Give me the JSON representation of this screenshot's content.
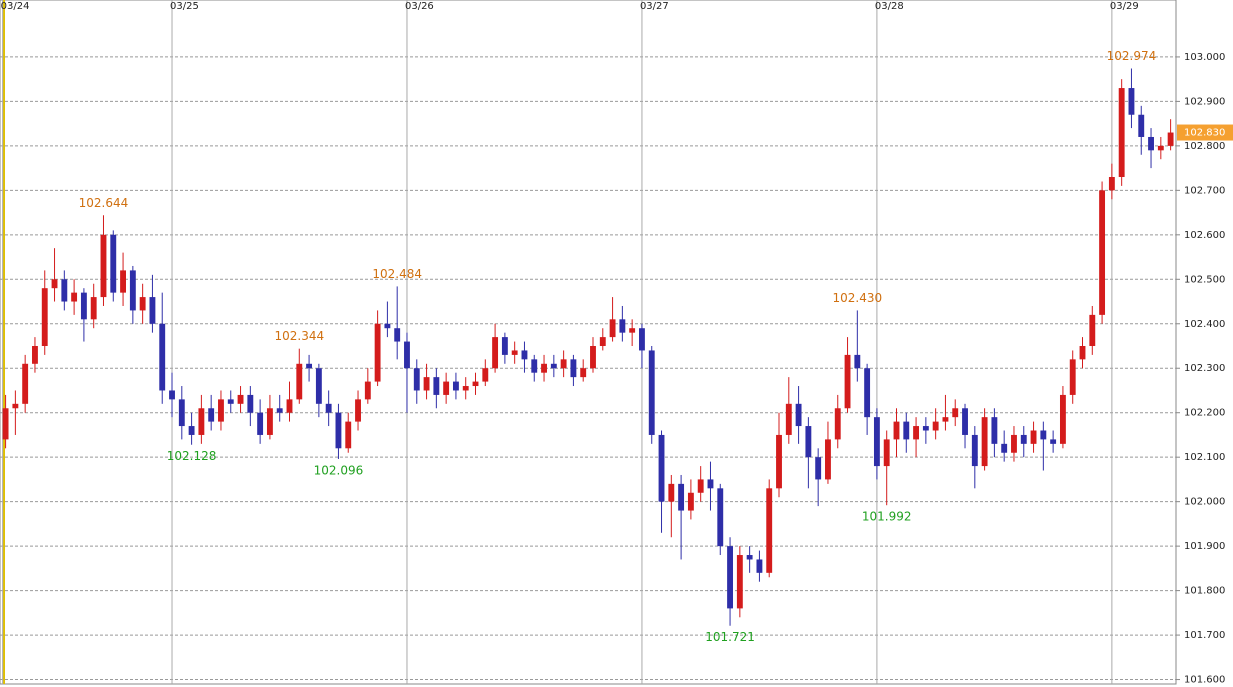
{
  "chart_data": {
    "type": "candlestick",
    "colors": {
      "up": "#d41c1c",
      "down": "#2e2ea8"
    },
    "open": [
      102.14,
      102.21,
      102.22,
      102.31,
      102.35,
      102.48,
      102.5,
      102.45,
      102.47,
      102.41,
      102.46,
      102.6,
      102.47,
      102.52,
      102.43,
      102.46,
      102.4,
      102.25,
      102.23,
      102.17,
      102.15,
      102.21,
      102.18,
      102.23,
      102.22,
      102.24,
      102.2,
      102.15,
      102.21,
      102.2,
      102.23,
      102.31,
      102.3,
      102.22,
      102.2,
      102.12,
      102.18,
      102.23,
      102.27,
      102.4,
      102.39,
      102.36,
      102.3,
      102.25,
      102.28,
      102.24,
      102.27,
      102.25,
      102.26,
      102.27,
      102.3,
      102.37,
      102.33,
      102.34,
      102.32,
      102.29,
      102.31,
      102.3,
      102.32,
      102.28,
      102.3,
      102.35,
      102.37,
      102.41,
      102.38,
      102.39,
      102.34,
      102.15,
      102.0,
      102.04,
      101.98,
      102.02,
      102.05,
      102.03,
      101.9,
      101.76,
      101.88,
      101.87,
      101.84,
      102.03,
      102.15,
      102.22,
      102.17,
      102.1,
      102.05,
      102.14,
      102.21,
      102.33,
      102.3,
      102.19,
      102.08,
      102.14,
      102.18,
      102.14,
      102.17,
      102.16,
      102.18,
      102.19,
      102.21,
      102.15,
      102.08,
      102.19,
      102.13,
      102.11,
      102.15,
      102.13,
      102.16,
      102.14,
      102.13,
      102.24,
      102.32,
      102.35,
      102.42,
      102.7,
      102.73,
      102.93,
      102.87,
      102.82,
      102.79,
      102.8
    ],
    "high": [
      102.24,
      102.25,
      102.33,
      102.37,
      102.52,
      102.57,
      102.52,
      102.5,
      102.48,
      102.49,
      102.644,
      102.61,
      102.56,
      102.53,
      102.49,
      102.51,
      102.47,
      102.29,
      102.26,
      102.2,
      102.24,
      102.24,
      102.25,
      102.25,
      102.26,
      102.26,
      102.23,
      102.24,
      102.24,
      102.27,
      102.344,
      102.33,
      102.31,
      102.25,
      102.22,
      102.2,
      102.25,
      102.3,
      102.43,
      102.45,
      102.484,
      102.38,
      102.32,
      102.31,
      102.3,
      102.29,
      102.29,
      102.28,
      102.29,
      102.32,
      102.4,
      102.38,
      102.36,
      102.36,
      102.33,
      102.33,
      102.33,
      102.34,
      102.33,
      102.32,
      102.37,
      102.39,
      102.46,
      102.44,
      102.41,
      102.4,
      102.35,
      102.16,
      102.06,
      102.06,
      102.05,
      102.08,
      102.09,
      102.04,
      101.92,
      101.9,
      101.9,
      101.89,
      102.05,
      102.2,
      102.28,
      102.26,
      102.19,
      102.12,
      102.18,
      102.24,
      102.37,
      102.43,
      102.31,
      102.21,
      102.16,
      102.21,
      102.2,
      102.19,
      102.19,
      102.21,
      102.24,
      102.23,
      102.22,
      102.17,
      102.21,
      102.21,
      102.16,
      102.17,
      102.17,
      102.18,
      102.18,
      102.16,
      102.26,
      102.34,
      102.37,
      102.44,
      102.72,
      102.76,
      102.95,
      102.974,
      102.89,
      102.84,
      102.82,
      102.86
    ],
    "low": [
      102.12,
      102.15,
      102.2,
      102.29,
      102.33,
      102.45,
      102.43,
      102.42,
      102.36,
      102.39,
      102.44,
      102.45,
      102.44,
      102.4,
      102.4,
      102.38,
      102.22,
      102.19,
      102.14,
      102.128,
      102.13,
      102.16,
      102.16,
      102.2,
      102.2,
      102.17,
      102.13,
      102.14,
      102.18,
      102.18,
      102.22,
      102.27,
      102.19,
      102.17,
      102.096,
      102.11,
      102.16,
      102.22,
      102.26,
      102.37,
      102.32,
      102.2,
      102.22,
      102.23,
      102.21,
      102.22,
      102.23,
      102.23,
      102.24,
      102.26,
      102.29,
      102.31,
      102.31,
      102.29,
      102.27,
      102.27,
      102.28,
      102.28,
      102.26,
      102.27,
      102.29,
      102.34,
      102.36,
      102.36,
      102.35,
      102.3,
      102.13,
      101.93,
      101.92,
      101.87,
      101.96,
      102.0,
      101.98,
      101.88,
      101.721,
      101.74,
      101.84,
      101.82,
      101.83,
      102.01,
      102.13,
      102.13,
      102.03,
      101.99,
      102.04,
      102.12,
      102.2,
      102.27,
      102.15,
      102.05,
      101.992,
      102.1,
      102.11,
      102.1,
      102.13,
      102.14,
      102.16,
      102.17,
      102.12,
      102.03,
      102.07,
      102.1,
      102.09,
      102.09,
      102.1,
      102.11,
      102.07,
      102.11,
      102.12,
      102.22,
      102.3,
      102.33,
      102.4,
      102.68,
      102.71,
      102.84,
      102.78,
      102.75,
      102.77,
      102.79
    ],
    "close": [
      102.21,
      102.22,
      102.31,
      102.35,
      102.48,
      102.5,
      102.45,
      102.47,
      102.41,
      102.46,
      102.6,
      102.47,
      102.52,
      102.43,
      102.46,
      102.4,
      102.25,
      102.23,
      102.17,
      102.15,
      102.21,
      102.18,
      102.23,
      102.22,
      102.24,
      102.2,
      102.15,
      102.21,
      102.2,
      102.23,
      102.31,
      102.3,
      102.22,
      102.2,
      102.12,
      102.18,
      102.23,
      102.27,
      102.4,
      102.39,
      102.36,
      102.3,
      102.25,
      102.28,
      102.24,
      102.27,
      102.25,
      102.26,
      102.27,
      102.3,
      102.37,
      102.33,
      102.34,
      102.32,
      102.29,
      102.31,
      102.3,
      102.32,
      102.28,
      102.3,
      102.35,
      102.37,
      102.41,
      102.38,
      102.39,
      102.34,
      102.15,
      102.0,
      102.04,
      101.98,
      102.02,
      102.05,
      102.03,
      101.9,
      101.76,
      101.88,
      101.87,
      101.84,
      102.03,
      102.15,
      102.22,
      102.17,
      102.1,
      102.05,
      102.14,
      102.21,
      102.33,
      102.3,
      102.19,
      102.08,
      102.14,
      102.18,
      102.14,
      102.17,
      102.16,
      102.18,
      102.19,
      102.21,
      102.15,
      102.08,
      102.19,
      102.13,
      102.11,
      102.15,
      102.13,
      102.16,
      102.14,
      102.13,
      102.24,
      102.32,
      102.35,
      102.42,
      102.7,
      102.73,
      102.93,
      102.87,
      102.82,
      102.79,
      102.8,
      102.83
    ],
    "xlim": [
      -0.57,
      119.55
    ],
    "xticks": [
      {
        "value": -0.3,
        "label": "03/24"
      },
      {
        "value": 17,
        "label": "03/25"
      },
      {
        "value": 41,
        "label": "03/26"
      },
      {
        "value": 65,
        "label": "03/27"
      },
      {
        "value": 89,
        "label": "03/28"
      },
      {
        "value": 113,
        "label": "03/29"
      }
    ],
    "ylim": [
      101.59,
      103.128
    ],
    "yticks": [
      {
        "value": 101.6,
        "label": "101.600"
      },
      {
        "value": 101.7,
        "label": "101.700"
      },
      {
        "value": 101.8,
        "label": "101.800"
      },
      {
        "value": 101.9,
        "label": "101.900"
      },
      {
        "value": 102.0,
        "label": "102.000"
      },
      {
        "value": 102.1,
        "label": "102.100"
      },
      {
        "value": 102.2,
        "label": "102.200"
      },
      {
        "value": 102.3,
        "label": "102.300"
      },
      {
        "value": 102.4,
        "label": "102.400"
      },
      {
        "value": 102.5,
        "label": "102.500"
      },
      {
        "value": 102.6,
        "label": "102.600"
      },
      {
        "value": 102.7,
        "label": "102.700"
      },
      {
        "value": 102.8,
        "label": "102.800"
      },
      {
        "value": 102.9,
        "label": "102.900"
      },
      {
        "value": 103.0,
        "label": "103.000"
      }
    ],
    "grid": true,
    "annotations": [
      {
        "text": "102.644",
        "x": 10,
        "position": "above",
        "color": "#d07010"
      },
      {
        "text": "102.128",
        "x": 19,
        "position": "below",
        "color": "#20a020"
      },
      {
        "text": "102.344",
        "x": 30,
        "position": "above",
        "color": "#d07010"
      },
      {
        "text": "102.096",
        "x": 34,
        "position": "below",
        "color": "#20a020"
      },
      {
        "text": "102.484",
        "x": 40,
        "position": "above",
        "color": "#d07010"
      },
      {
        "text": "101.721",
        "x": 74,
        "position": "below",
        "color": "#20a020"
      },
      {
        "text": "102.430",
        "x": 87,
        "position": "above",
        "color": "#d07010"
      },
      {
        "text": "101.992",
        "x": 90,
        "position": "below",
        "color": "#20a020"
      },
      {
        "text": "102.974",
        "x": 115,
        "position": "above",
        "color": "#d07010"
      }
    ],
    "last_price": {
      "value": 102.83,
      "label": "102.830",
      "color": "#f5a030"
    }
  }
}
